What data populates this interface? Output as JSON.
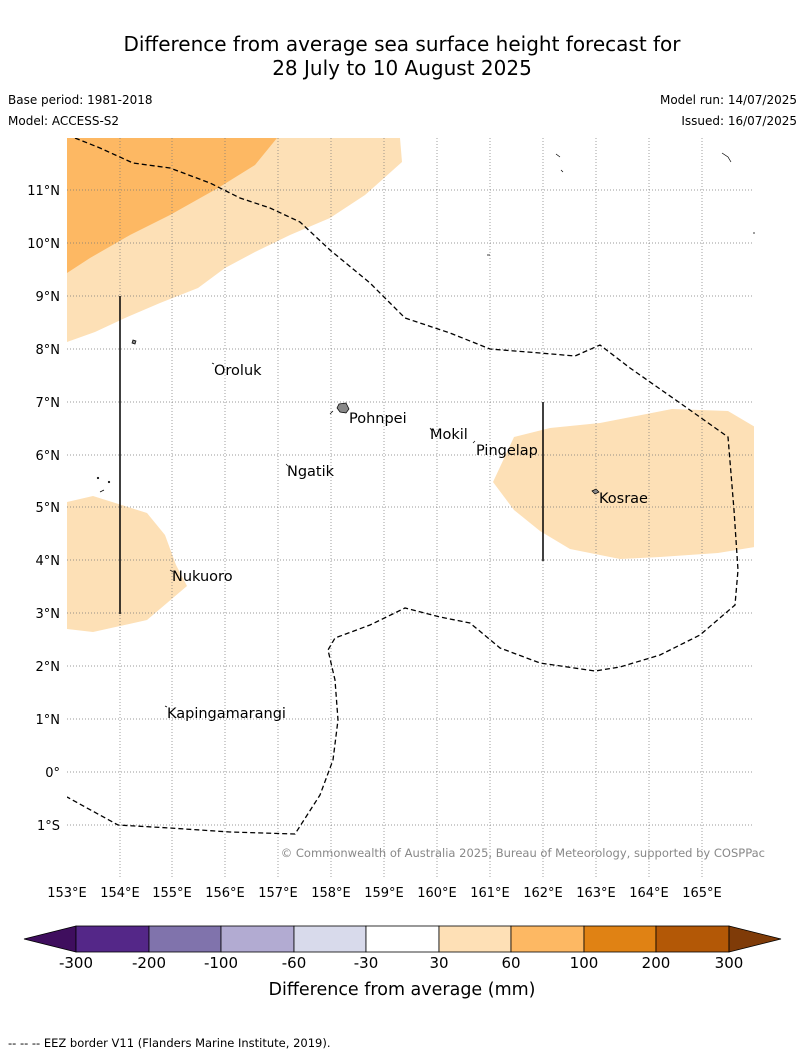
{
  "header": {
    "title_line1": "Difference from average sea surface height forecast for",
    "title_line2": "28 July to 10 August 2025",
    "base_period": "Base period: 1981-2018",
    "model": "Model: ACCESS-S2",
    "model_run": "Model run: 14/07/2025",
    "issued": "Issued: 16/07/2025"
  },
  "map": {
    "lat_labels": [
      "11°N",
      "10°N",
      "9°N",
      "8°N",
      "7°N",
      "6°N",
      "5°N",
      "4°N",
      "3°N",
      "2°N",
      "1°N",
      "0°",
      "1°S"
    ],
    "lon_labels": [
      "153°E",
      "154°E",
      "155°E",
      "156°E",
      "157°E",
      "158°E",
      "159°E",
      "160°E",
      "161°E",
      "162°E",
      "163°E",
      "164°E",
      "165°E"
    ],
    "places": [
      "Oroluk",
      "Pohnpei",
      "Mokil",
      "Pingelap",
      "Ngatik",
      "Kosrae",
      "Nukuoro",
      "Kapingamarangi"
    ],
    "copyright": "© Commonwealth of Australia 2025, Bureau of Meteorology, supported by COSPPac",
    "colors": {
      "light_orange": "#fde0b6",
      "mid_orange": "#fdb863",
      "border": "#000000"
    }
  },
  "legend": {
    "title": "Difference from average (mm)",
    "tick_labels": [
      "-300",
      "-200",
      "-100",
      "-60",
      "-30",
      "30",
      "60",
      "100",
      "200",
      "300"
    ],
    "colors": [
      "#3f0e5e",
      "#542788",
      "#8073ac",
      "#b2abd2",
      "#d8daeb",
      "#ffffff",
      "#fee0b6",
      "#fdb863",
      "#e08214",
      "#b35806",
      "#7f3b08"
    ]
  },
  "footer": {
    "text": "--  --  -- EEZ border V11 (Flanders Marine Institute, 2019)."
  }
}
